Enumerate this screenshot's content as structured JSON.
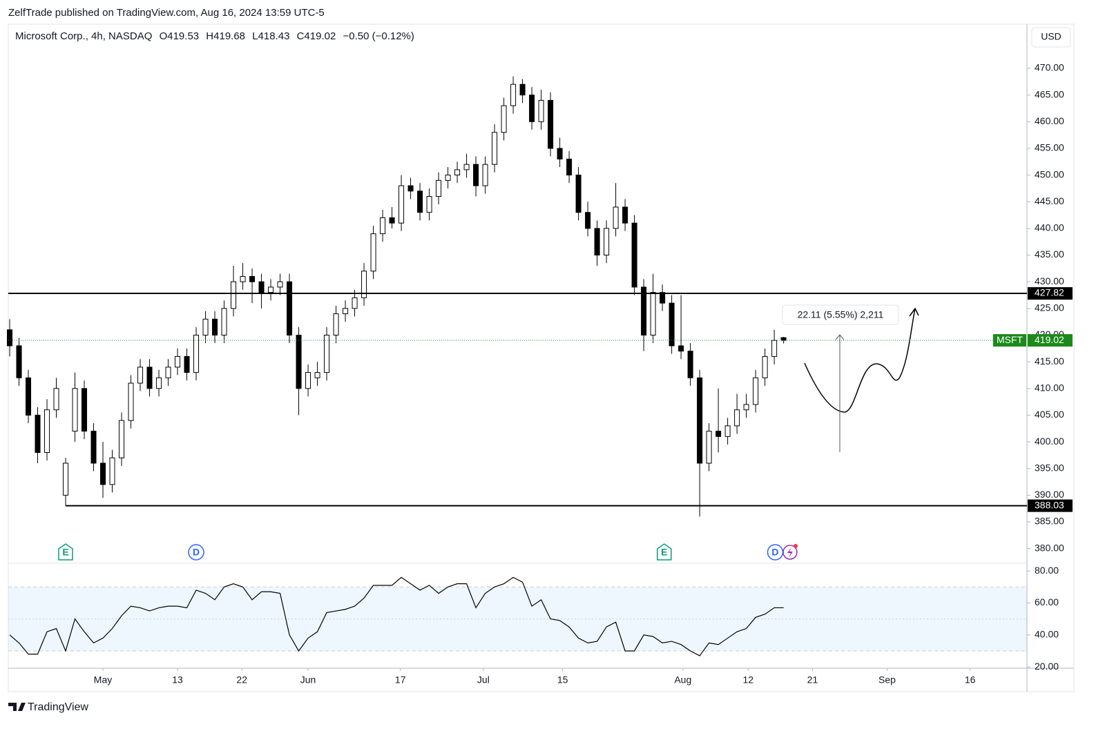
{
  "header": {
    "title": "ZelfTrade published on TradingView.com, Aug 16, 2024 13:59 UTC-5",
    "brand": "TradingView"
  },
  "chart_data": {
    "type": "candlestick",
    "legend": {
      "name": "Microsoft Corp., 4h, NASDAQ",
      "open": "O419.53",
      "high": "H419.68",
      "low": "L418.43",
      "close": "C419.02",
      "change": "−0.50 (−0.12%)"
    },
    "currency": "USD",
    "candles": [
      [
        421,
        423,
        416,
        418
      ],
      [
        418,
        419.5,
        410.5,
        412
      ],
      [
        412,
        413.5,
        403.5,
        405
      ],
      [
        405,
        406.5,
        396,
        398
      ],
      [
        398,
        408,
        396.5,
        406
      ],
      [
        406,
        412,
        404.5,
        410
      ],
      [
        390,
        397,
        388,
        396
      ],
      [
        402,
        413,
        400,
        410
      ],
      [
        410,
        411.5,
        400.5,
        402
      ],
      [
        402,
        403.5,
        394.5,
        396
      ],
      [
        396,
        400,
        389.5,
        392
      ],
      [
        392,
        398.5,
        390.5,
        397
      ],
      [
        397,
        405.5,
        395.5,
        404
      ],
      [
        404,
        412.5,
        402.5,
        411
      ],
      [
        411,
        415.5,
        409.5,
        414
      ],
      [
        414,
        415.5,
        408.5,
        410
      ],
      [
        410,
        413.5,
        408.5,
        412
      ],
      [
        412,
        415.5,
        410.5,
        414
      ],
      [
        414,
        417.5,
        412.5,
        416
      ],
      [
        416,
        417.5,
        411.5,
        413
      ],
      [
        413,
        421.5,
        411.5,
        420
      ],
      [
        420,
        424.5,
        418.5,
        423
      ],
      [
        423,
        424.5,
        418.5,
        420
      ],
      [
        420,
        426.5,
        418.5,
        425
      ],
      [
        425,
        433,
        423.5,
        430
      ],
      [
        430,
        433.5,
        428.5,
        431
      ],
      [
        431,
        432.5,
        426,
        430
      ],
      [
        430,
        431.5,
        425,
        428
      ],
      [
        428,
        430.5,
        426.5,
        429
      ],
      [
        429,
        431.5,
        427.5,
        430
      ],
      [
        430,
        431.5,
        418.5,
        420
      ],
      [
        420,
        421.5,
        405,
        410
      ],
      [
        410,
        414.5,
        408.5,
        413
      ],
      [
        412,
        415,
        410.5,
        413
      ],
      [
        413,
        421.5,
        411.5,
        420
      ],
      [
        420,
        425.5,
        418.5,
        424
      ],
      [
        424,
        426.5,
        422.5,
        425
      ],
      [
        425,
        428.5,
        423.5,
        427
      ],
      [
        427,
        433.5,
        425.5,
        432
      ],
      [
        432,
        440.5,
        430.5,
        439
      ],
      [
        439,
        443.5,
        437.5,
        442
      ],
      [
        442,
        444,
        440,
        441
      ],
      [
        441,
        450,
        439.5,
        448
      ],
      [
        448,
        449.5,
        445.5,
        447
      ],
      [
        447,
        448.5,
        441.5,
        443
      ],
      [
        443,
        447.5,
        441.5,
        446
      ],
      [
        446,
        450.5,
        444.5,
        449
      ],
      [
        449,
        451.5,
        447.5,
        450
      ],
      [
        450,
        452.5,
        448.5,
        451
      ],
      [
        451,
        454,
        449.5,
        452
      ],
      [
        452,
        453.5,
        446,
        448
      ],
      [
        448,
        453.5,
        446.5,
        452
      ],
      [
        452,
        459.5,
        450.5,
        458
      ],
      [
        458,
        464.5,
        456.5,
        463
      ],
      [
        463,
        468.5,
        461.5,
        467
      ],
      [
        467,
        468,
        463.5,
        465
      ],
      [
        465,
        466.5,
        458.5,
        460
      ],
      [
        460,
        466,
        458.5,
        464
      ],
      [
        464,
        465.5,
        453.5,
        455
      ],
      [
        455,
        457,
        451.5,
        453
      ],
      [
        453,
        454.5,
        448.5,
        450
      ],
      [
        450,
        451.5,
        441.5,
        443
      ],
      [
        443,
        445,
        438.5,
        440
      ],
      [
        440,
        441.5,
        433,
        435
      ],
      [
        435,
        441.5,
        433.5,
        440
      ],
      [
        440,
        448.5,
        438.5,
        444
      ],
      [
        444,
        445.5,
        439.5,
        441
      ],
      [
        441,
        442.5,
        427.5,
        429
      ],
      [
        429,
        430.5,
        417,
        420
      ],
      [
        420,
        431.5,
        418.5,
        428
      ],
      [
        428,
        429.5,
        424.5,
        426
      ],
      [
        426,
        427.5,
        416.5,
        418
      ],
      [
        418,
        427.5,
        415.5,
        417
      ],
      [
        417,
        418.5,
        410.5,
        412
      ],
      [
        412,
        413.5,
        386,
        396
      ],
      [
        396,
        403.5,
        394.5,
        402
      ],
      [
        402,
        410,
        398,
        401
      ],
      [
        401,
        404.5,
        399.5,
        403
      ],
      [
        403,
        409,
        401.5,
        406
      ],
      [
        406,
        409,
        404.5,
        407
      ],
      [
        407,
        413.5,
        405.5,
        412
      ],
      [
        412,
        417.5,
        410.5,
        416
      ],
      [
        416,
        421,
        414.5,
        419
      ],
      [
        419.53,
        419.68,
        418.43,
        419.02
      ]
    ],
    "xlim": [
      -0.15,
      109.1
    ],
    "xticks": [
      {
        "value": 10,
        "label": "May"
      },
      {
        "value": 18,
        "label": "13"
      },
      {
        "value": 24.9,
        "label": "22"
      },
      {
        "value": 32,
        "label": "Jun"
      },
      {
        "value": 41.9,
        "label": "17"
      },
      {
        "value": 50.8,
        "label": "Jul"
      },
      {
        "value": 59.3,
        "label": "15"
      },
      {
        "value": 72.2,
        "label": "Aug"
      },
      {
        "value": 79.2,
        "label": "12"
      },
      {
        "value": 86.1,
        "label": "21"
      },
      {
        "value": 94.1,
        "label": "Sep"
      },
      {
        "value": 103,
        "label": "16"
      }
    ],
    "ylim": [
      377.24,
      478.28
    ],
    "yticks": [
      {
        "value": 470,
        "label": "470.00"
      },
      {
        "value": 465,
        "label": "465.00"
      },
      {
        "value": 460,
        "label": "460.00"
      },
      {
        "value": 455,
        "label": "455.00"
      },
      {
        "value": 450,
        "label": "450.00"
      },
      {
        "value": 445,
        "label": "445.00"
      },
      {
        "value": 440,
        "label": "440.00"
      },
      {
        "value": 435,
        "label": "435.00"
      },
      {
        "value": 430,
        "label": "430.00"
      },
      {
        "value": 425,
        "label": "425.00"
      },
      {
        "value": 420,
        "label": "420.00"
      },
      {
        "value": 415,
        "label": "415.00"
      },
      {
        "value": 410,
        "label": "410.00"
      },
      {
        "value": 405,
        "label": "405.00"
      },
      {
        "value": 400,
        "label": "400.00"
      },
      {
        "value": 395,
        "label": "395.00"
      },
      {
        "value": 390,
        "label": "390.00"
      },
      {
        "value": 385,
        "label": "385.00"
      },
      {
        "value": 380,
        "label": "380.00"
      }
    ],
    "hlines": [
      {
        "value": 427.82,
        "from": -0.15
      },
      {
        "value": 388.03,
        "from": 6
      }
    ],
    "price_tag": {
      "symbol": "MSFT",
      "value": 419.02,
      "color": "#1b8a1b"
    },
    "events": [
      {
        "label": "E",
        "at": 6,
        "color": "#089981"
      },
      {
        "label": "D",
        "at": 20,
        "color": "#2962ff"
      },
      {
        "label": "E",
        "at": 70.2,
        "color": "#089981"
      },
      {
        "label": "D",
        "at": 82.1,
        "color": "#2962ff"
      }
    ],
    "measure": "22.11 (5.55%) 2,211",
    "rsi": {
      "values": [
        40,
        35,
        28,
        28,
        42,
        44,
        30,
        50,
        42,
        35,
        38,
        44,
        52,
        58,
        57,
        55,
        57,
        58,
        58,
        57,
        68,
        66,
        62,
        70,
        72,
        70,
        62,
        67,
        67,
        66,
        40,
        30,
        38,
        42,
        54,
        55,
        56,
        58,
        63,
        71,
        71,
        71,
        76,
        72,
        68,
        71,
        66,
        70,
        72,
        72,
        57,
        66,
        70,
        72,
        76,
        73,
        58,
        62,
        50,
        49,
        45,
        38,
        35,
        36,
        45,
        48,
        30,
        30,
        40,
        39,
        35,
        36,
        34,
        30,
        27,
        35,
        34,
        38,
        42,
        44,
        51,
        53,
        57,
        57
      ],
      "ylim": [
        19.2,
        84.8
      ],
      "band": [
        30,
        70
      ],
      "midline": 50,
      "yticks": [
        {
          "value": 80,
          "label": "80.00"
        },
        {
          "value": 60,
          "label": "60.00"
        },
        {
          "value": 40,
          "label": "40.00"
        },
        {
          "value": 20,
          "label": "20.00"
        }
      ]
    }
  }
}
